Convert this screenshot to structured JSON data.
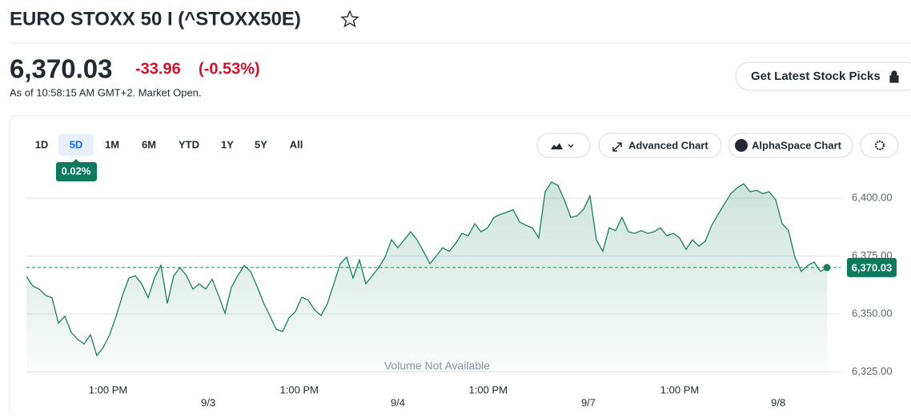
{
  "header": {
    "title": "EURO STOXX 50 I (^STOXX50E)"
  },
  "quote": {
    "price": "6,370.03",
    "change": "-33.96",
    "change_pct": "(-0.53%)",
    "as_of": "As of 10:58:15 AM GMT+2. Market Open."
  },
  "cta": "Get Latest Stock Picks",
  "toolbar": {
    "ranges": [
      "1D",
      "5D",
      "1M",
      "6M",
      "YTD",
      "1Y",
      "5Y",
      "All"
    ],
    "selected_range": "5D",
    "range_change": "0.02%",
    "tools": [
      "Advanced Chart",
      "AlphaSpace Chart"
    ]
  },
  "chart_data": {
    "type": "line",
    "color": "#1a7f5a",
    "values": [
      6366.2,
      6362,
      6360.7,
      6358,
      6357,
      6346,
      6349,
      6342,
      6339,
      6337,
      6341,
      6332,
      6335.5,
      6341,
      6349,
      6358,
      6365.5,
      6366.5,
      6363,
      6357,
      6365.5,
      6371,
      6354.5,
      6366.5,
      6370,
      6366.5,
      6360.7,
      6363,
      6360.7,
      6365,
      6358,
      6350.3,
      6361.4,
      6366.5,
      6371,
      6368.3,
      6362,
      6355,
      6349.3,
      6343.4,
      6342.4,
      6348.3,
      6351,
      6357.2,
      6356,
      6351.7,
      6349.3,
      6354.5,
      6363,
      6371.7,
      6374.5,
      6365.5,
      6373.4,
      6363,
      6366.5,
      6370,
      6374.5,
      6382,
      6378.6,
      6382,
      6385.5,
      6382,
      6377,
      6371.7,
      6375,
      6378.6,
      6377,
      6380.3,
      6384.8,
      6383.8,
      6389,
      6385.5,
      6387.2,
      6391.7,
      6393,
      6394,
      6395,
      6389.7,
      6388.3,
      6387.2,
      6382.8,
      6402.8,
      6407,
      6405.5,
      6399.3,
      6391.7,
      6392.4,
      6395.2,
      6401,
      6382,
      6377,
      6387.2,
      6386,
      6391.7,
      6385.5,
      6384.8,
      6386,
      6384.8,
      6385.5,
      6387.2,
      6383.8,
      6384.8,
      6382.8,
      6377.9,
      6382,
      6379.3,
      6381.4,
      6388.3,
      6393,
      6397.6,
      6402,
      6404.5,
      6406.2,
      6402.8,
      6403.4,
      6402,
      6402.8,
      6399.3,
      6389,
      6386,
      6374.5,
      6368.3,
      6371,
      6372.4,
      6368.3,
      6370.03
    ],
    "xlim": [
      0,
      127
    ],
    "xticks": [
      {
        "value": 12.75,
        "label": "1:00 PM"
      },
      {
        "value": 42.6,
        "label": "1:00 PM"
      },
      {
        "value": 72.1,
        "label": "1:00 PM"
      },
      {
        "value": 102,
        "label": "1:00 PM"
      }
    ],
    "date_ticks": [
      {
        "value": 28.4,
        "label": "9/3"
      },
      {
        "value": 58,
        "label": "9/4"
      },
      {
        "value": 87.75,
        "label": "9/7"
      },
      {
        "value": 117.4,
        "label": "9/8"
      }
    ],
    "ylim": [
      6323.4,
      6409.7
    ],
    "yticks": [
      {
        "value": 6325,
        "label": "6,325.00"
      },
      {
        "value": 6350,
        "label": "6,350.00"
      },
      {
        "value": 6375,
        "label": "6,375.00"
      },
      {
        "value": 6400,
        "label": "6,400.00"
      }
    ],
    "last_value": {
      "value": 6370.03,
      "label": "6,370.03"
    },
    "annotation": "Volume Not Available",
    "grid": true
  }
}
